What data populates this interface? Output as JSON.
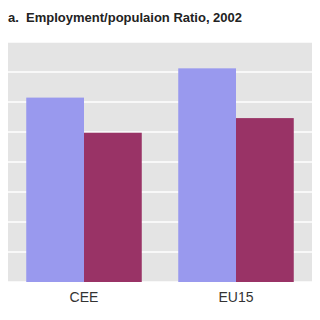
{
  "chart_data": {
    "type": "bar",
    "title": "a.  Employment/populaion Ratio, 2002",
    "categories": [
      "CEE",
      "EU15"
    ],
    "series": [
      {
        "color": "#9999ee",
        "values": [
          63,
          73
        ]
      },
      {
        "color": "#993366",
        "values": [
          51,
          56
        ]
      }
    ],
    "ylim": [
      0,
      82
    ],
    "yticks": [
      0,
      10.25,
      20.5,
      30.75,
      41,
      51.25,
      61.5,
      71.75,
      82
    ],
    "grid": true,
    "tick_labels": "x"
  }
}
